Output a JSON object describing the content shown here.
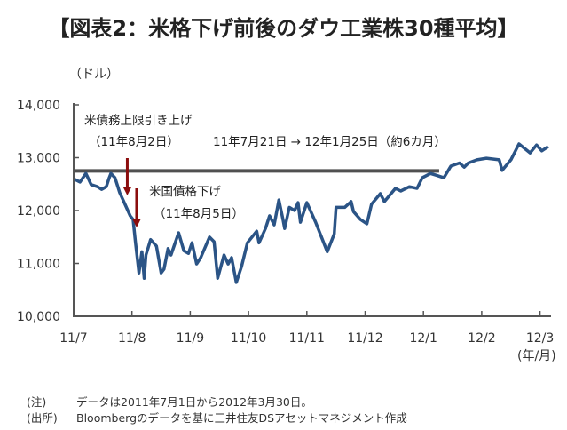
{
  "chart_data": {
    "type": "line",
    "title": "【図表2：米格下げ前後のダウ工業株30種平均】",
    "ylabel": "（ドル）",
    "xlabel": "(年/月)",
    "ylim": [
      10000,
      14000
    ],
    "xlim_months_from_2011_07": [
      0,
      8.25
    ],
    "y_ticks": [
      "10,000",
      "11,000",
      "12,000",
      "13,000",
      "14,000"
    ],
    "y_tick_values": [
      10000,
      11000,
      12000,
      13000,
      14000
    ],
    "x_ticks": [
      "11/7",
      "11/8",
      "11/9",
      "11/10",
      "11/11",
      "11/12",
      "12/1",
      "12/2",
      "12/3"
    ],
    "grid": false,
    "series": [
      {
        "name": "ダウ工業株30種平均",
        "color": "#2b5486",
        "x": [
          0.02,
          0.11,
          0.21,
          0.3,
          0.41,
          0.48,
          0.56,
          0.61,
          0.64,
          0.71,
          0.79,
          0.86,
          0.97,
          1.02,
          1.06,
          1.12,
          1.17,
          1.21,
          1.24,
          1.32,
          1.42,
          1.5,
          1.55,
          1.62,
          1.67,
          1.8,
          1.89,
          1.97,
          2.03,
          2.11,
          2.18,
          2.33,
          2.41,
          2.47,
          2.58,
          2.65,
          2.71,
          2.79,
          2.88,
          2.98,
          3.14,
          3.18,
          3.29,
          3.36,
          3.44,
          3.52,
          3.59,
          3.62,
          3.7,
          3.79,
          3.85,
          3.89,
          4.0,
          4.15,
          4.35,
          4.47,
          4.5,
          4.65,
          4.76,
          4.8,
          4.92,
          5.03,
          5.11,
          5.26,
          5.33,
          5.52,
          5.61,
          5.76,
          5.89,
          5.98,
          6.12,
          6.21,
          6.35,
          6.47,
          6.62,
          6.7,
          6.77,
          6.92,
          7.08,
          7.3,
          7.35,
          7.5,
          7.64,
          7.83,
          7.94,
          8.03,
          8.14
        ],
        "y": [
          12590,
          12540,
          12700,
          12490,
          12450,
          12400,
          12450,
          12620,
          12700,
          12620,
          12340,
          12170,
          11900,
          11830,
          11410,
          10820,
          11220,
          10720,
          11160,
          11450,
          11330,
          10820,
          10890,
          11280,
          11160,
          11580,
          11240,
          11190,
          11390,
          10990,
          11110,
          11500,
          11410,
          10720,
          11160,
          10990,
          11110,
          10640,
          10940,
          11390,
          11610,
          11390,
          11660,
          11900,
          11730,
          12200,
          11830,
          11660,
          12060,
          12000,
          12150,
          11780,
          12150,
          11780,
          11220,
          11560,
          12060,
          12060,
          12170,
          11980,
          11830,
          11750,
          12120,
          12320,
          12170,
          12420,
          12370,
          12450,
          12420,
          12620,
          12700,
          12670,
          12620,
          12840,
          12900,
          12820,
          12900,
          12960,
          12990,
          12960,
          12760,
          12960,
          13260,
          13090,
          13240,
          13130,
          13210
        ]
      }
    ],
    "reference_line": {
      "value": 12750,
      "x_from": 0,
      "x_to": 6.27,
      "color": "#505050"
    },
    "annotations": [
      {
        "text": "米債務上限引き上げ",
        "subtext": "（11年8月2日）",
        "arrow_x": 0.92,
        "arrow_color": "#8b0d0d"
      },
      {
        "text": "米国債格下げ",
        "subtext": "（11年8月5日）",
        "arrow_x": 1.08,
        "arrow_color": "#8b0d0d"
      },
      {
        "text": "11年7月21日 → 12年1月25日（約6カ月）"
      }
    ]
  },
  "notes": [
    {
      "key": "(注)",
      "text": "データは2011年7月1日から2012年3月30日。"
    },
    {
      "key": "(出所)",
      "text": "Bloombergのデータを基に三井住友DSアセットマネジメント作成"
    }
  ]
}
